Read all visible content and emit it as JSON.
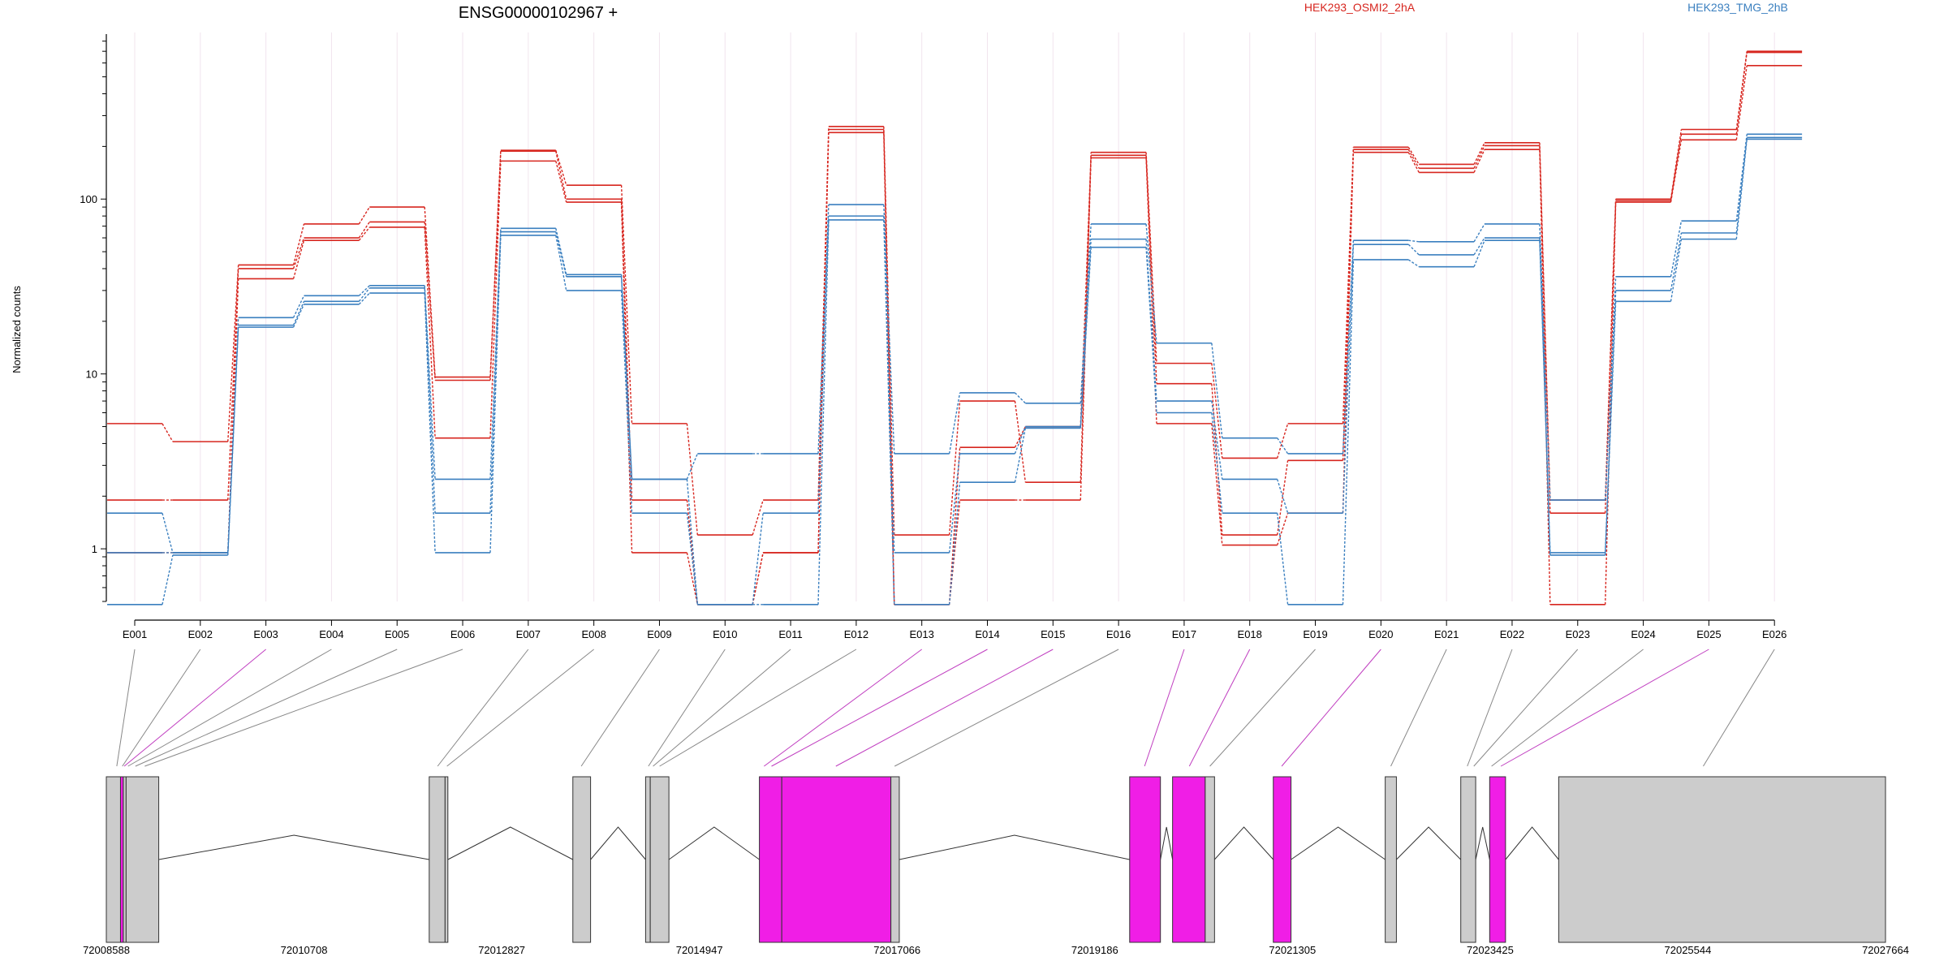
{
  "chart_data": {
    "type": "line",
    "title": "ENSG00000102967 +",
    "ylabel": "Normalized counts",
    "xlabel": "",
    "y_scale": "log",
    "ylim": [
      0.5,
      850
    ],
    "y_ticks": [
      1,
      10,
      100
    ],
    "y_tick_labels": [
      "1",
      "10",
      "100"
    ],
    "categories": [
      "E001",
      "E002",
      "E003",
      "E004",
      "E005",
      "E006",
      "E007",
      "E008",
      "E009",
      "E010",
      "E011",
      "E012",
      "E013",
      "E014",
      "E015",
      "E016",
      "E017",
      "E018",
      "E019",
      "E020",
      "E021",
      "E022",
      "E023",
      "E024",
      "E025",
      "E026"
    ],
    "grid": "vertical",
    "legend": [
      {
        "name": "HEK293_OSMI2_2hA",
        "color": "#d7261f"
      },
      {
        "name": "HEK293_TMG_2hB",
        "color": "#3a7fbf"
      }
    ],
    "series": [
      {
        "name": "HEK293_OSMI2_2hA",
        "color": "#d7261f",
        "values": [
          5.2,
          4.1,
          42,
          72,
          90,
          9.6,
          190,
          120,
          5.2,
          1.2,
          1.9,
          260,
          1.2,
          7.0,
          2.4,
          185,
          11.5,
          3.3,
          5.2,
          198,
          158,
          210,
          1.9,
          100,
          250,
          700
        ]
      },
      {
        "name": "HEK293_OSMI2_2hA",
        "color": "#d7261f",
        "values": [
          1.9,
          1.9,
          40,
          60,
          74,
          9.2,
          188,
          100,
          1.9,
          0.48,
          0.95,
          250,
          0.48,
          3.8,
          5.0,
          178,
          8.8,
          1.2,
          3.2,
          192,
          150,
          202,
          1.6,
          98,
          235,
          690
        ]
      },
      {
        "name": "HEK293_OSMI2_2hA",
        "color": "#d7261f",
        "values": [
          0.95,
          0.95,
          35,
          58,
          69,
          4.3,
          165,
          96,
          0.95,
          0.48,
          0.95,
          240,
          0.48,
          1.9,
          1.9,
          172,
          5.2,
          1.05,
          1.6,
          185,
          142,
          192,
          0.48,
          96,
          218,
          580
        ]
      },
      {
        "name": "HEK293_TMG_2hB",
        "color": "#3a7fbf",
        "values": [
          1.6,
          0.95,
          21,
          28,
          32,
          2.5,
          68,
          37,
          2.5,
          3.5,
          3.5,
          93,
          3.5,
          7.8,
          6.8,
          72,
          15,
          4.3,
          3.5,
          58,
          57,
          72,
          1.9,
          36,
          75,
          235
        ]
      },
      {
        "name": "HEK293_TMG_2hB",
        "color": "#3a7fbf",
        "values": [
          0.95,
          0.95,
          19,
          26,
          31,
          1.6,
          65,
          36,
          2.5,
          0.48,
          1.6,
          80,
          0.95,
          3.5,
          5.0,
          59,
          7.0,
          2.5,
          1.6,
          55,
          48,
          60,
          0.95,
          30,
          64,
          225
        ]
      },
      {
        "name": "HEK293_TMG_2hB",
        "color": "#3a7fbf",
        "values": [
          0.48,
          0.92,
          18.5,
          25,
          29,
          0.95,
          62,
          30,
          1.6,
          0.48,
          0.48,
          76,
          0.48,
          2.4,
          4.9,
          53,
          6.0,
          1.6,
          0.48,
          45,
          41,
          58,
          0.92,
          26,
          59,
          220
        ]
      }
    ],
    "genomic_axis": {
      "start": 72008588,
      "end": 72027664,
      "tick_labels": [
        "72008588",
        "72010708",
        "72012827",
        "72014947",
        "72017066",
        "72019186",
        "72021305",
        "72023425",
        "72025544",
        "72027664"
      ]
    },
    "gene_model": {
      "exons": [
        {
          "start": 72008588,
          "end": 72008740,
          "color": "#cccccc"
        },
        {
          "start": 72008740,
          "end": 72008770,
          "color": "#f01ee6"
        },
        {
          "start": 72008770,
          "end": 72008800,
          "color": "#cccccc"
        },
        {
          "start": 72008800,
          "end": 72009150,
          "color": "#cccccc"
        },
        {
          "start": 72012050,
          "end": 72012220,
          "color": "#cccccc"
        },
        {
          "start": 72012220,
          "end": 72012250,
          "color": "#cccccc"
        },
        {
          "start": 72013590,
          "end": 72013780,
          "color": "#cccccc"
        },
        {
          "start": 72014370,
          "end": 72014420,
          "color": "#cccccc"
        },
        {
          "start": 72014420,
          "end": 72014620,
          "color": "#cccccc"
        },
        {
          "start": 72015590,
          "end": 72015830,
          "color": "#f01ee6"
        },
        {
          "start": 72015830,
          "end": 72017000,
          "color": "#f01ee6"
        },
        {
          "start": 72017000,
          "end": 72017090,
          "color": "#cccccc"
        },
        {
          "start": 72019560,
          "end": 72019890,
          "color": "#f01ee6"
        },
        {
          "start": 72020020,
          "end": 72020370,
          "color": "#f01ee6"
        },
        {
          "start": 72020370,
          "end": 72020470,
          "color": "#cccccc"
        },
        {
          "start": 72021100,
          "end": 72021290,
          "color": "#f01ee6"
        },
        {
          "start": 72022300,
          "end": 72022420,
          "color": "#cccccc"
        },
        {
          "start": 72023110,
          "end": 72023270,
          "color": "#cccccc"
        },
        {
          "start": 72023420,
          "end": 72023590,
          "color": "#f01ee6"
        },
        {
          "start": 72024160,
          "end": 72027664,
          "color": "#cccccc"
        }
      ],
      "connectors": [
        {
          "bin": 1,
          "pos": 72008700,
          "color": "#888888"
        },
        {
          "bin": 2,
          "pos": 72008760,
          "color": "#888888"
        },
        {
          "bin": 3,
          "pos": 72008780,
          "color": "#c03ec0"
        },
        {
          "bin": 4,
          "pos": 72008820,
          "color": "#888888"
        },
        {
          "bin": 5,
          "pos": 72008900,
          "color": "#888888"
        },
        {
          "bin": 6,
          "pos": 72009000,
          "color": "#888888"
        },
        {
          "bin": 7,
          "pos": 72012140,
          "color": "#888888"
        },
        {
          "bin": 8,
          "pos": 72012240,
          "color": "#888888"
        },
        {
          "bin": 9,
          "pos": 72013680,
          "color": "#888888"
        },
        {
          "bin": 10,
          "pos": 72014400,
          "color": "#888888"
        },
        {
          "bin": 11,
          "pos": 72014450,
          "color": "#888888"
        },
        {
          "bin": 12,
          "pos": 72014520,
          "color": "#888888"
        },
        {
          "bin": 13,
          "pos": 72015640,
          "color": "#c03ec0"
        },
        {
          "bin": 14,
          "pos": 72015720,
          "color": "#c03ec0"
        },
        {
          "bin": 15,
          "pos": 72016410,
          "color": "#c03ec0"
        },
        {
          "bin": 16,
          "pos": 72017040,
          "color": "#888888"
        },
        {
          "bin": 17,
          "pos": 72019720,
          "color": "#c03ec0"
        },
        {
          "bin": 18,
          "pos": 72020200,
          "color": "#c03ec0"
        },
        {
          "bin": 19,
          "pos": 72020420,
          "color": "#888888"
        },
        {
          "bin": 20,
          "pos": 72021190,
          "color": "#c03ec0"
        },
        {
          "bin": 21,
          "pos": 72022360,
          "color": "#888888"
        },
        {
          "bin": 22,
          "pos": 72023180,
          "color": "#888888"
        },
        {
          "bin": 23,
          "pos": 72023250,
          "color": "#888888"
        },
        {
          "bin": 24,
          "pos": 72023440,
          "color": "#888888"
        },
        {
          "bin": 25,
          "pos": 72023540,
          "color": "#c03ec0"
        },
        {
          "bin": 26,
          "pos": 72025710,
          "color": "#888888"
        }
      ]
    }
  }
}
